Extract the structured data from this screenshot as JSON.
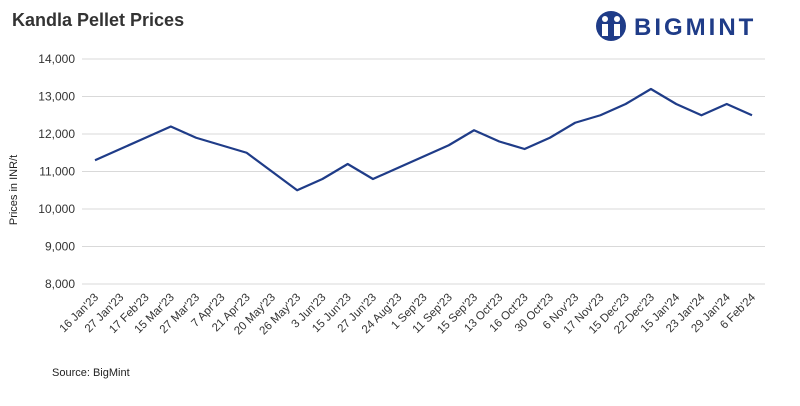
{
  "chart_data": {
    "type": "line",
    "title": "Kandla Pellet Prices",
    "logo": "BIGMINT",
    "y_label": "Prices in INR/t",
    "source": "Source: BigMint",
    "categories": [
      "16 Jan'23",
      "27 Jan'23",
      "17 Feb'23",
      "15 Mar'23",
      "27 Mar'23",
      "7 Apr'23",
      "21 Apr'23",
      "20 May'23",
      "26 May'23",
      "3 Jun'23",
      "15 Jun'23",
      "27 Jun'23",
      "24 Aug'23",
      "1 Sep'23",
      "11 Sep'23",
      "15 Sep'23",
      "13 Oct'23",
      "16 Oct'23",
      "30 Oct'23",
      "6 Nov'23",
      "17 Nov'23",
      "15 Dec'23",
      "22 Dec'23",
      "15 Jan'24",
      "23 Jan'24",
      "29 Jan'24",
      "6 Feb'24"
    ],
    "values": [
      11300,
      11600,
      11900,
      12200,
      11900,
      11700,
      11500,
      11000,
      10500,
      10800,
      11200,
      10800,
      11100,
      11400,
      11700,
      12100,
      11800,
      11600,
      11900,
      12300,
      12500,
      12800,
      13200,
      12800,
      12500,
      12800,
      12500
    ],
    "color": "#1f3c88",
    "ylim": [
      8000,
      14000
    ],
    "yticks": [
      {
        "value": 8000,
        "label": "8,000"
      },
      {
        "value": 9000,
        "label": "9,000"
      },
      {
        "value": 10000,
        "label": "10,000"
      },
      {
        "value": 11000,
        "label": "11,000"
      },
      {
        "value": 12000,
        "label": "12,000"
      },
      {
        "value": 13000,
        "label": "13,000"
      },
      {
        "value": 14000,
        "label": "14,000"
      }
    ],
    "grid": true
  }
}
